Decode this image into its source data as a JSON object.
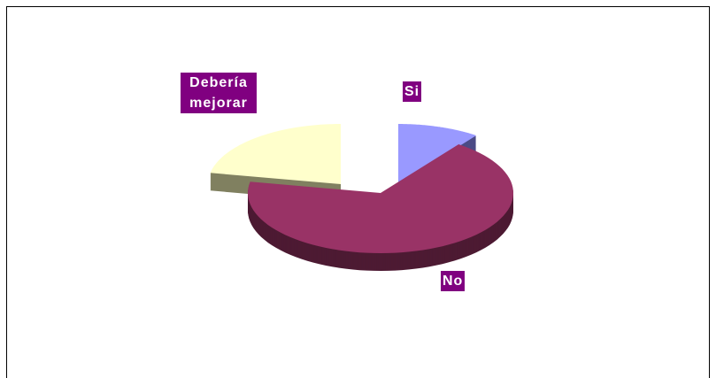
{
  "chart_data": {
    "type": "pie3d",
    "categories": [
      "Si",
      "No",
      "Debería mejorar"
    ],
    "values": [
      10,
      68,
      22
    ],
    "colors": [
      "#9999ff",
      "#993366",
      "#ffffcc"
    ],
    "side_colors": [
      "#4b4b85",
      "#4d1a33",
      "#808060"
    ]
  }
}
